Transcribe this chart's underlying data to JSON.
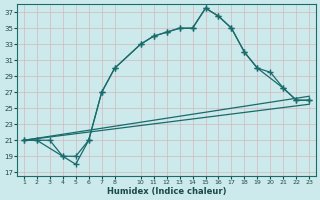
{
  "xlabel": "Humidex (Indice chaleur)",
  "bg_color": "#cce9ec",
  "grid_color": "#c8dfe2",
  "line_color": "#1a6b6b",
  "xlim": [
    0.5,
    23.5
  ],
  "ylim": [
    16.5,
    38.0
  ],
  "xticks": [
    1,
    2,
    3,
    4,
    5,
    6,
    7,
    8,
    10,
    11,
    12,
    13,
    14,
    15,
    16,
    17,
    18,
    19,
    20,
    21,
    22,
    23
  ],
  "yticks": [
    17,
    19,
    21,
    23,
    25,
    27,
    29,
    31,
    33,
    35,
    37
  ],
  "line1_x": [
    1,
    2,
    3,
    4,
    5,
    6,
    7,
    8,
    10,
    11,
    12,
    13,
    14,
    15,
    16,
    17,
    18,
    19,
    20,
    21,
    22,
    23
  ],
  "line1_y": [
    21,
    21,
    21,
    19,
    19,
    21,
    27,
    30,
    33,
    34,
    34.5,
    35,
    35,
    37.5,
    36.5,
    35,
    32,
    30,
    29.5,
    27.5,
    26,
    26
  ],
  "line2_x": [
    1,
    2,
    4,
    5,
    6,
    7,
    8,
    10,
    11,
    12,
    13,
    14,
    15,
    16,
    17,
    18,
    19,
    21,
    22,
    23
  ],
  "line2_y": [
    21,
    21,
    19,
    18,
    21,
    27,
    30,
    33,
    34,
    34.5,
    35,
    35,
    37.5,
    36.5,
    35,
    32,
    30,
    27.5,
    26,
    26
  ],
  "line3_x": [
    1,
    23
  ],
  "line3_y": [
    21,
    26.5
  ],
  "line4_x": [
    1,
    23
  ],
  "line4_y": [
    21,
    25.5
  ]
}
